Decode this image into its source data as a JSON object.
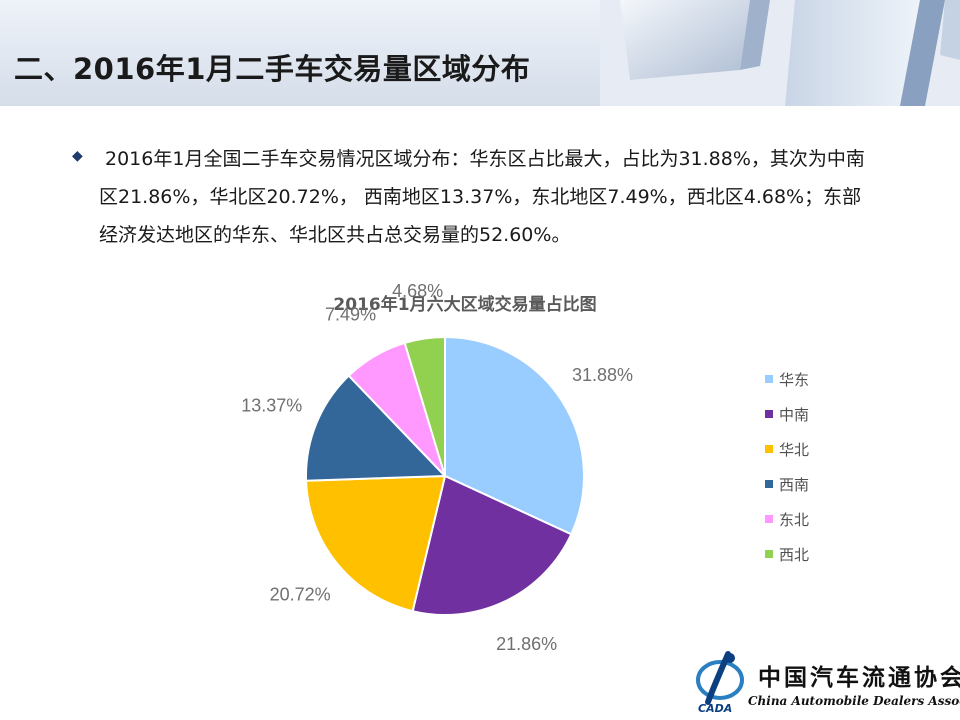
{
  "header": {
    "title": "二、2016年1月二手车交易量区域分布"
  },
  "bullet": {
    "icon": "diamond-bullet-icon",
    "text": "2016年1月全国二手车交易情况区域分布：华东区占比最大，占比为31.88%，其次为中南区21.86%，华北区20.72%， 西南地区13.37%，东北地区7.49%，西北区4.68%；东部经济发达地区的华东、华北区共占总交易量的52.60%。"
  },
  "chart_data": {
    "type": "pie",
    "title": "2016年1月六大区域交易量占比图",
    "categories": [
      "华东",
      "中南",
      "华北",
      "西南",
      "东北",
      "西北"
    ],
    "values": [
      31.88,
      21.86,
      20.72,
      13.37,
      7.49,
      4.68
    ],
    "labels": [
      "31.88%",
      "21.86%",
      "20.72%",
      "13.37%",
      "7.49%",
      "4.68%"
    ],
    "colors": [
      "#99ccff",
      "#7030a0",
      "#ffc000",
      "#336699",
      "#ff99ff",
      "#92d050"
    ],
    "legend_position": "right"
  },
  "logo": {
    "cn": "中国汽车流通协会",
    "en": "China Automobile Dealers Association",
    "mark": "CADA"
  },
  "colors": {
    "header_band": "#dfe6f0",
    "bullet": "#1f3b6b"
  }
}
